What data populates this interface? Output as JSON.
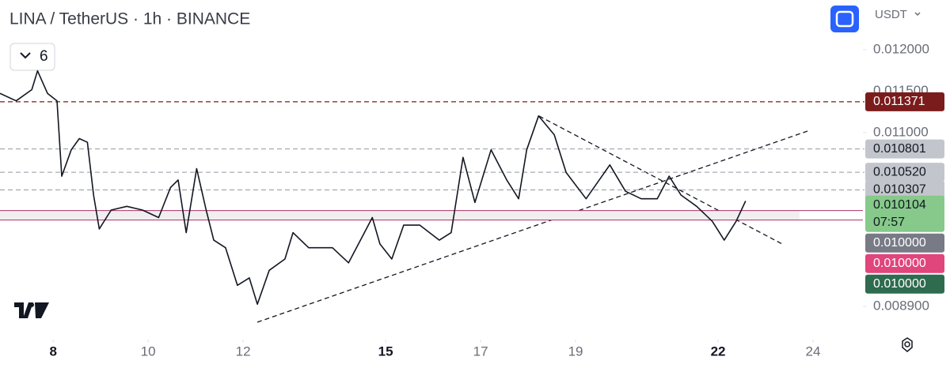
{
  "header": {
    "title": "LINA / TetherUS · 1h · BINANCE",
    "currency": "USDT",
    "indicator_count": "6"
  },
  "chart_data": {
    "type": "line",
    "x": [
      6.88,
      7.22,
      7.55,
      7.67,
      7.88,
      8.08,
      8.18,
      8.38,
      8.55,
      8.72,
      8.85,
      8.97,
      9.22,
      9.55,
      9.88,
      10.22,
      10.47,
      10.63,
      10.8,
      11.02,
      11.22,
      11.38,
      11.63,
      11.88,
      12.13,
      12.3,
      12.55,
      12.88,
      13.05,
      13.38,
      13.88,
      14.22,
      14.72,
      14.88,
      15.13,
      15.38,
      15.72,
      16.13,
      16.38,
      16.63,
      16.88,
      17.22,
      17.55,
      17.8,
      17.97,
      18.22,
      18.55,
      18.8,
      19.22,
      19.72,
      20.05,
      20.38,
      20.72,
      20.97,
      21.22,
      21.55,
      21.88,
      22.13,
      22.38,
      22.58
    ],
    "series": [
      {
        "name": "LINA / TetherUS",
        "color": "#131722",
        "values": [
          0.011473,
          0.011382,
          0.011518,
          0.011745,
          0.011473,
          0.011382,
          0.010473,
          0.010791,
          0.010927,
          0.010882,
          0.010245,
          0.009836,
          0.010064,
          0.010109,
          0.010064,
          0.009973,
          0.010336,
          0.010427,
          0.009791,
          0.010564,
          0.010064,
          0.0097,
          0.009609,
          0.009155,
          0.009245,
          0.008927,
          0.009336,
          0.009473,
          0.009791,
          0.009609,
          0.009609,
          0.009427,
          0.009973,
          0.009655,
          0.009473,
          0.009882,
          0.009882,
          0.0097,
          0.009791,
          0.0107,
          0.010155,
          0.010791,
          0.010427,
          0.0102,
          0.010791,
          0.0112,
          0.010973,
          0.010518,
          0.0102,
          0.010609,
          0.010291,
          0.0102,
          0.0102,
          0.010473,
          0.010245,
          0.010109,
          0.009927,
          0.0097,
          0.009927,
          0.010173
        ]
      }
    ],
    "xlim": [
      6.88,
      25.05
    ],
    "xticks": [
      8,
      10,
      12,
      15,
      17,
      19,
      22,
      24
    ],
    "ylim": [
      0.0085,
      0.0126
    ],
    "yticks": [
      {
        "value": 0.0089,
        "label": "0.008900"
      },
      {
        "value": 0.011,
        "label": "0.011000"
      },
      {
        "value": 0.0115,
        "label": "0.011500"
      },
      {
        "value": 0.012,
        "label": "0.012000"
      }
    ],
    "price_lines": [
      {
        "value": 0.011371,
        "label": "0.011371",
        "color": "#7b1c1c",
        "text_color": "#ffffff"
      },
      {
        "value": 0.010801,
        "label": "0.010801",
        "color": "#c3c5cc",
        "text_color": "#131722"
      },
      {
        "value": 0.01052,
        "label": "0.010520",
        "color": "#c3c5cc",
        "text_color": "#131722"
      },
      {
        "value": 0.010307,
        "label": "0.010307",
        "color": "#c3c5cc",
        "text_color": "#131722"
      }
    ],
    "last_price": {
      "value": 0.010104,
      "label": "0.010104",
      "countdown": "07:57",
      "color": "#86c98a"
    },
    "zone_labels": [
      {
        "value": 0.01,
        "label": "0.010000",
        "color": "#787b86"
      },
      {
        "value": 0.01,
        "label": "0.010000",
        "color": "#e0457b"
      },
      {
        "value": 0.01,
        "label": "0.010000",
        "color": "#2e6b4f"
      }
    ]
  }
}
